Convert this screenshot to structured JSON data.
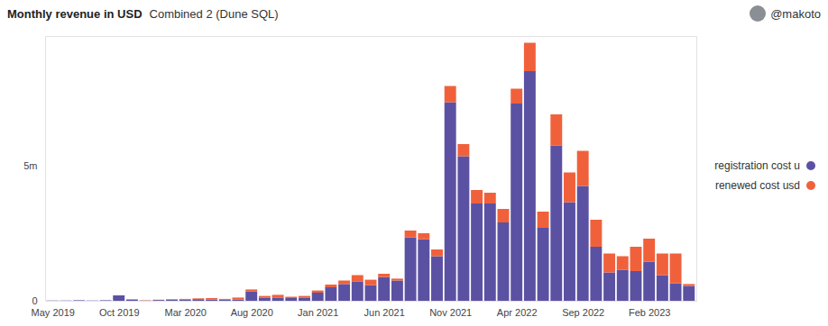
{
  "chart_data": {
    "type": "bar",
    "title": "Monthly revenue in USD",
    "subtitle": "Combined 2 (Dune SQL)",
    "annotations": [
      "@makoto"
    ],
    "categories": [
      "May 2019",
      null,
      null,
      null,
      null,
      "Oct 2019",
      null,
      null,
      null,
      null,
      "Mar 2020",
      null,
      null,
      null,
      null,
      "Aug 2020",
      null,
      null,
      null,
      null,
      "Jan 2021",
      null,
      null,
      null,
      null,
      "Jun 2021",
      null,
      null,
      null,
      null,
      "Nov 2021",
      null,
      null,
      null,
      null,
      "Apr 2022",
      null,
      null,
      null,
      null,
      "Sep 2022",
      null,
      null,
      null,
      null,
      "Feb 2023",
      null,
      null,
      null
    ],
    "series": [
      {
        "name": "registration cost u",
        "color": "#5b51a3",
        "values": [
          0.01,
          0.01,
          0.02,
          0.01,
          0.02,
          0.2,
          0.05,
          0.01,
          0.03,
          0.04,
          0.05,
          0.06,
          0.05,
          0.04,
          0.05,
          0.35,
          0.12,
          0.12,
          0.1,
          0.12,
          0.3,
          0.5,
          0.62,
          0.72,
          0.58,
          0.88,
          0.75,
          2.35,
          2.28,
          1.65,
          7.35,
          5.35,
          3.6,
          3.6,
          2.9,
          7.3,
          8.5,
          2.7,
          5.75,
          3.65,
          4.25,
          2.0,
          1.05,
          1.15,
          1.1,
          1.45,
          0.95,
          0.65,
          0.55
        ]
      },
      {
        "name": "renewed cost usd",
        "color": "#f0613b",
        "values": [
          0,
          0,
          0,
          0,
          0,
          0,
          0,
          0.01,
          0.01,
          0.02,
          0.02,
          0.03,
          0.05,
          0.03,
          0.07,
          0.07,
          0.06,
          0.1,
          0.05,
          0.06,
          0.08,
          0.1,
          0.13,
          0.23,
          0.2,
          0.12,
          0.07,
          0.25,
          0.22,
          0.25,
          0.6,
          0.45,
          0.5,
          0.4,
          0.5,
          0.55,
          1.05,
          0.6,
          1.15,
          1.1,
          1.3,
          1.0,
          0.7,
          0.5,
          0.9,
          0.85,
          0.8,
          1.1,
          0.07
        ]
      }
    ],
    "stacked": true,
    "ylim": [
      0,
      9.8
    ],
    "yticks": [
      0,
      {
        "value": 5,
        "label": "5m"
      }
    ],
    "grid": false,
    "legend": "right"
  }
}
